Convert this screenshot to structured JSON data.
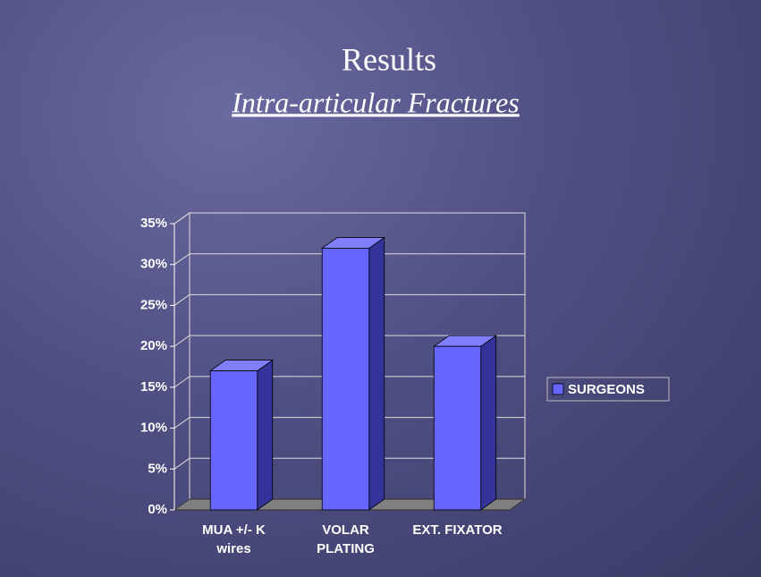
{
  "chart_data": {
    "type": "bar",
    "title": "Results",
    "subtitle": "Intra-articular Fractures",
    "categories": [
      "MUA +/- K wires",
      "VOLAR PLATING",
      "EXT. FIXATOR"
    ],
    "series": [
      {
        "name": "SURGEONS",
        "color": "#6666ff",
        "values": [
          17,
          32,
          20
        ]
      }
    ],
    "ylim": [
      0,
      35
    ],
    "yticks": [
      {
        "value": 0,
        "label": "0%"
      },
      {
        "value": 5,
        "label": "5%"
      },
      {
        "value": 10,
        "label": "10%"
      },
      {
        "value": 15,
        "label": "15%"
      },
      {
        "value": 20,
        "label": "20%"
      },
      {
        "value": 25,
        "label": "25%"
      },
      {
        "value": 30,
        "label": "30%"
      },
      {
        "value": 35,
        "label": "35%"
      }
    ],
    "grid": true,
    "legend": "right"
  }
}
